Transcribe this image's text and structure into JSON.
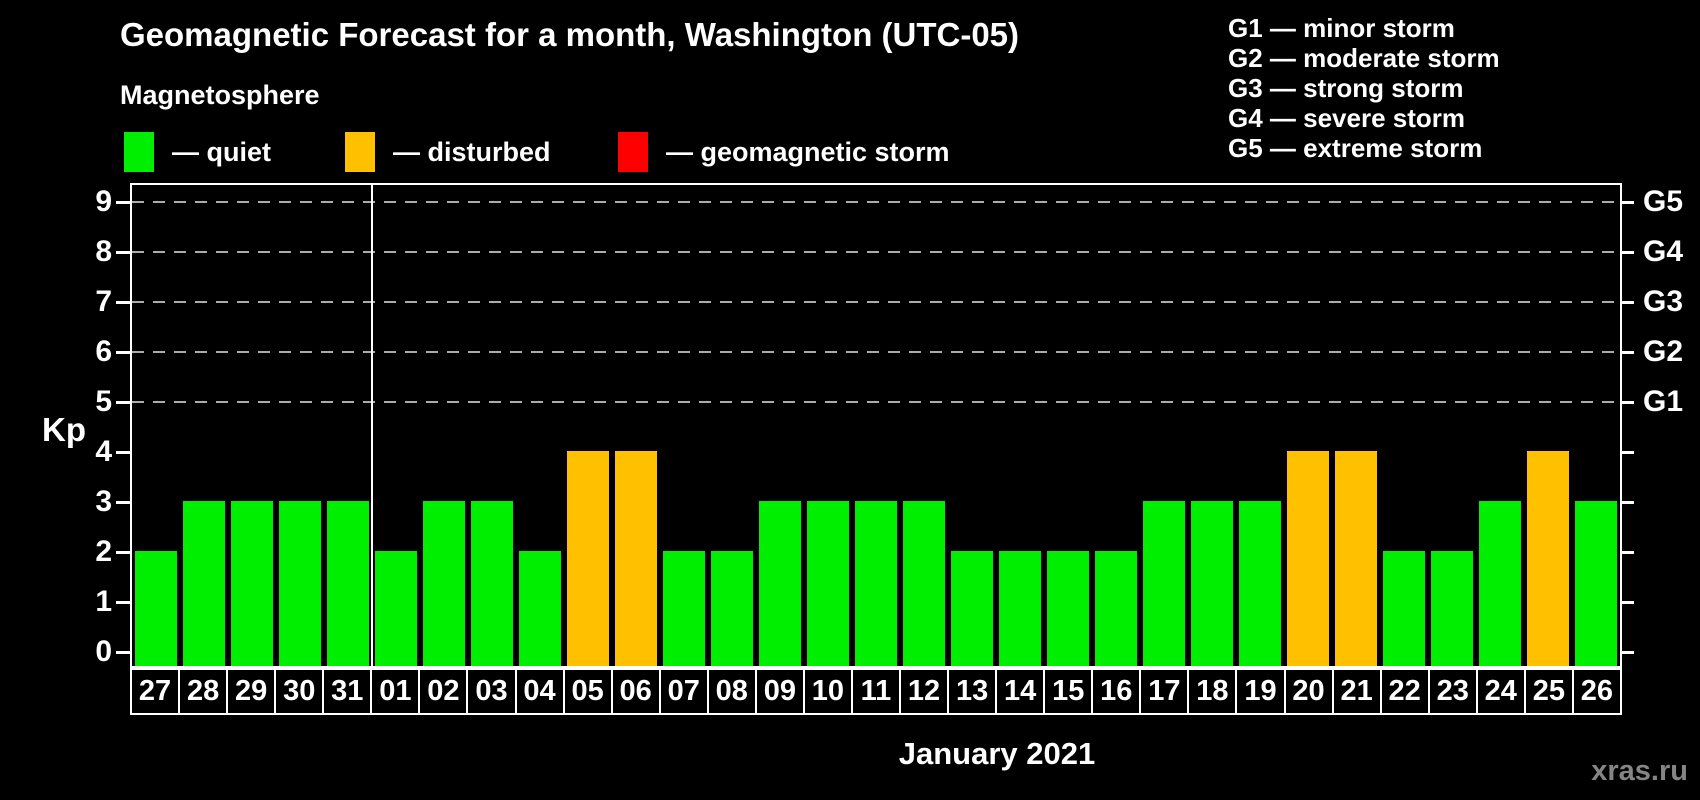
{
  "header": {
    "title": "Geomagnetic Forecast for a month, Washington (UTC-05)",
    "subtitle": "Magnetosphere"
  },
  "status_legend": [
    {
      "name": "quiet",
      "label": "— quiet",
      "color": "#00ee00"
    },
    {
      "name": "disturbed",
      "label": "— disturbed",
      "color": "#ffc000"
    },
    {
      "name": "storm",
      "label": "— geomagnetic storm",
      "color": "#ff0000"
    }
  ],
  "g_scale_legend": [
    "G1 — minor storm",
    "G2 — moderate storm",
    "G3 — strong storm",
    "G4 — severe storm",
    "G5 — extreme storm"
  ],
  "watermark": "xras.ru",
  "chart_data": {
    "type": "bar",
    "title": "Geomagnetic Forecast for a month, Washington (UTC-05)",
    "ylabel": "Kp",
    "xlabel": "January 2021",
    "ylim": [
      0,
      9
    ],
    "yticks": [
      0,
      1,
      2,
      3,
      4,
      5,
      6,
      7,
      8,
      9
    ],
    "gridlines": {
      "values": [
        5,
        6,
        7,
        8,
        9
      ],
      "style": "dashed"
    },
    "right_axis": [
      {
        "value": 5,
        "label": "G1"
      },
      {
        "value": 6,
        "label": "G2"
      },
      {
        "value": 7,
        "label": "G3"
      },
      {
        "value": 8,
        "label": "G4"
      },
      {
        "value": 9,
        "label": "G5"
      }
    ],
    "categories": [
      "27",
      "28",
      "29",
      "30",
      "31",
      "01",
      "02",
      "03",
      "04",
      "05",
      "06",
      "07",
      "08",
      "09",
      "10",
      "11",
      "12",
      "13",
      "14",
      "15",
      "16",
      "17",
      "18",
      "19",
      "20",
      "21",
      "22",
      "23",
      "24",
      "25",
      "26"
    ],
    "values": [
      2,
      3,
      3,
      3,
      3,
      2,
      3,
      3,
      2,
      4,
      4,
      2,
      2,
      3,
      3,
      3,
      3,
      2,
      2,
      2,
      2,
      3,
      3,
      3,
      4,
      4,
      2,
      2,
      3,
      4,
      3
    ],
    "statuses": [
      "quiet",
      "quiet",
      "quiet",
      "quiet",
      "quiet",
      "quiet",
      "quiet",
      "quiet",
      "quiet",
      "disturbed",
      "disturbed",
      "quiet",
      "quiet",
      "quiet",
      "quiet",
      "quiet",
      "quiet",
      "quiet",
      "quiet",
      "quiet",
      "quiet",
      "quiet",
      "quiet",
      "quiet",
      "disturbed",
      "disturbed",
      "quiet",
      "quiet",
      "quiet",
      "disturbed",
      "quiet"
    ],
    "month_separator_after_index": 4,
    "colors": {
      "quiet": "#00ee00",
      "disturbed": "#ffc000",
      "storm": "#ff0000"
    },
    "legend_position": "top-left",
    "grid": "horizontal-dashed-upper-half-only"
  }
}
